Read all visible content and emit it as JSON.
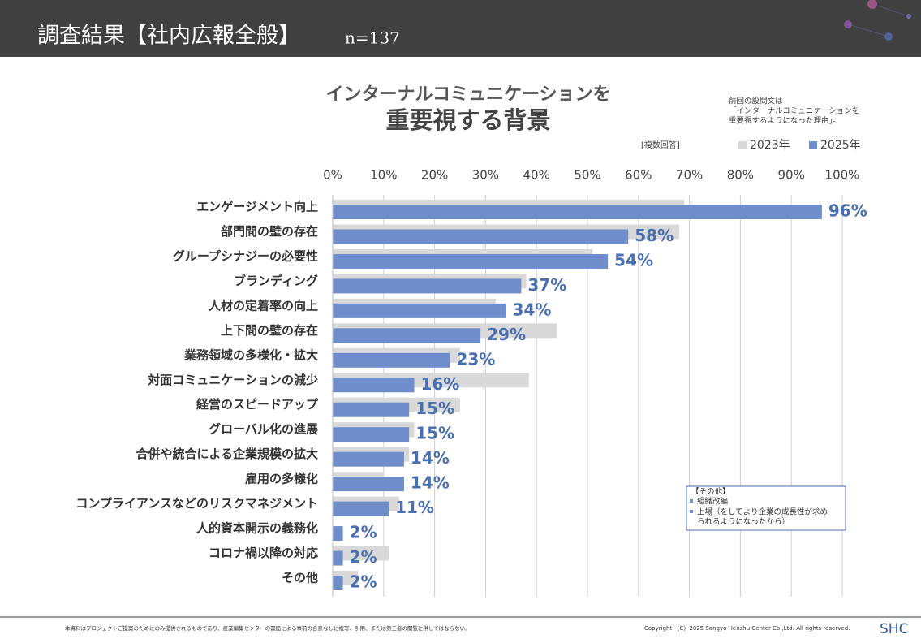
{
  "header": {
    "title": "調査結果【社内広報全般】",
    "sample": "n=137"
  },
  "note": {
    "lines": [
      "前回の設問文は",
      "「インターナルコミュニケーションを",
      "重要視するようになった理由」。"
    ]
  },
  "multiple_answer": "[複数回答]",
  "other_box": {
    "title": "【その他】",
    "items": [
      "組織改編",
      "上場（をしてより企業の成長性が求め",
      "られるようになったから）"
    ]
  },
  "footer": {
    "disclaimer": "本資料はプロジェクトご提案のためにのみ提供されるものであり、産業編集センターの書面による事前の合意なしに複写、引用、または第三者の閲覧に供してはならない。",
    "copyright": "Copyright （C）2025  Sangyo Henshu Center Co.,Ltd. All rights reserved.",
    "logo": "SHC"
  },
  "chart_data": {
    "type": "bar",
    "title": [
      "インターナルコミュニケーションを",
      "重要視する背景"
    ],
    "categories": [
      "エンゲージメント向上",
      "部門間の壁の存在",
      "グループシナジーの必要性",
      "ブランディング",
      "人材の定着率の向上",
      "上下間の壁の存在",
      "業務領域の多様化・拡大",
      "対面コミュニケーションの減少",
      "経営のスピードアップ",
      "グローバル化の進展",
      "合併や統合による企業規模の拡大",
      "雇用の多様化",
      "コンプライアンスなどのリスクマネジメント",
      "人的資本開示の義務化",
      "コロナ禍以降の対応",
      "その他"
    ],
    "series": [
      {
        "name": "2023年",
        "color": "#d9d9d9",
        "values": [
          69,
          68,
          51,
          38,
          32,
          44,
          25,
          38.5,
          25,
          16,
          15,
          10,
          13,
          null,
          11,
          5
        ]
      },
      {
        "name": "2025年",
        "color": "#6f8dca",
        "values": [
          96,
          58,
          54,
          37,
          34,
          29,
          23,
          16,
          15,
          15,
          14,
          14,
          11,
          2,
          2,
          2
        ],
        "value_labels": [
          "96%",
          "58%",
          "54%",
          "37%",
          "34%",
          "29%",
          "23%",
          "16%",
          "15%",
          "15%",
          "14%",
          "14%",
          "11%",
          "2%",
          "2%",
          "2%"
        ]
      }
    ],
    "xlim": [
      0,
      100
    ],
    "xticks": [
      {
        "value": 0,
        "label": "0%"
      },
      {
        "value": 10,
        "label": "10%"
      },
      {
        "value": 20,
        "label": "20%"
      },
      {
        "value": 30,
        "label": "30%"
      },
      {
        "value": 40,
        "label": "40%"
      },
      {
        "value": 50,
        "label": "50%"
      },
      {
        "value": 60,
        "label": "60%"
      },
      {
        "value": 70,
        "label": "70%"
      },
      {
        "value": 80,
        "label": "80%"
      },
      {
        "value": 90,
        "label": "90%"
      },
      {
        "value": 100,
        "label": "100%"
      }
    ],
    "grid": true
  }
}
